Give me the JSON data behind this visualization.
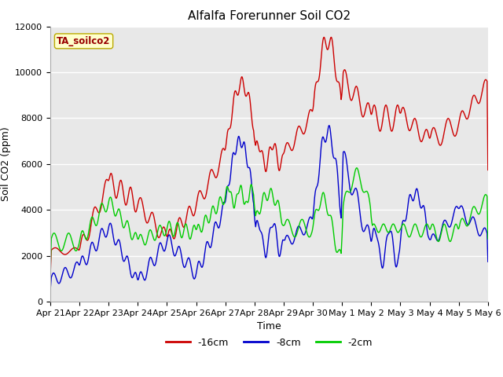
{
  "title": "Alfalfa Forerunner Soil CO2",
  "xlabel": "Time",
  "ylabel": "Soil CO2 (ppm)",
  "ylim": [
    0,
    12000
  ],
  "yticks": [
    0,
    2000,
    4000,
    6000,
    8000,
    10000,
    12000
  ],
  "xtick_labels": [
    "Apr 21",
    "Apr 22",
    "Apr 23",
    "Apr 24",
    "Apr 25",
    "Apr 26",
    "Apr 27",
    "Apr 28",
    "Apr 29",
    "Apr 30",
    "May 1",
    "May 2",
    "May 3",
    "May 4",
    "May 5",
    "May 6"
  ],
  "legend_label": "TA_soilco2",
  "series_labels": [
    "-16cm",
    "-8cm",
    "-2cm"
  ],
  "series_colors": [
    "#cc0000",
    "#0000cc",
    "#00cc00"
  ],
  "plot_bg_color": "#e8e8e8",
  "grid_color": "#ffffff",
  "title_fontsize": 11,
  "axis_fontsize": 9,
  "tick_fontsize": 8,
  "n_days": 15
}
